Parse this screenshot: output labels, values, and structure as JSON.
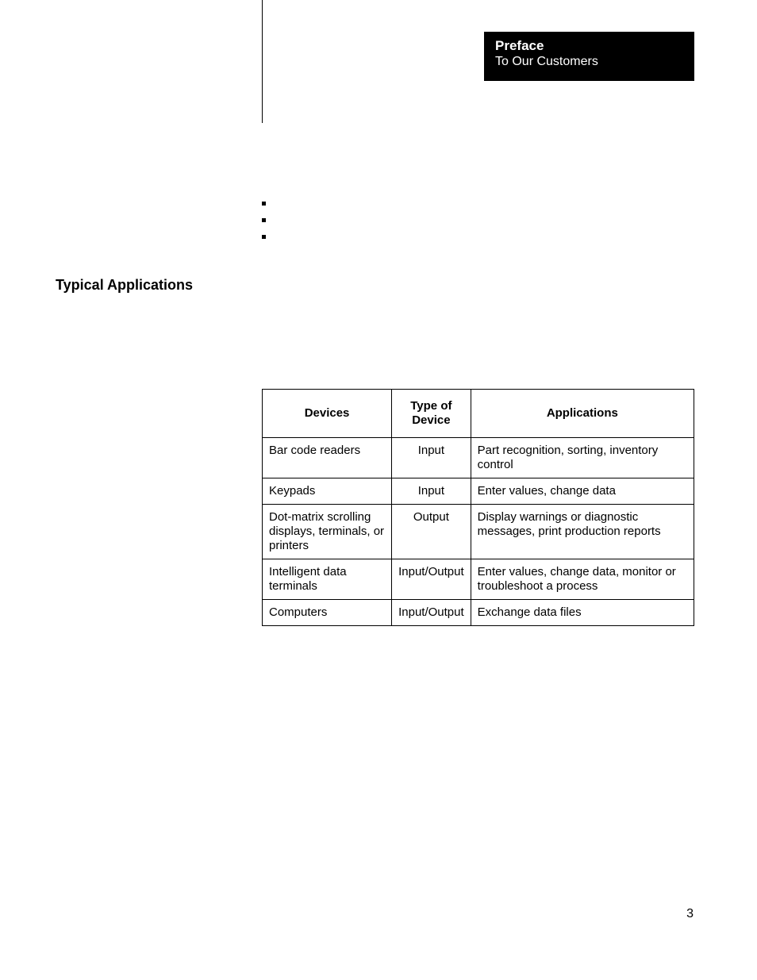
{
  "preface": {
    "title": "Preface",
    "subtitle": "To Our Customers"
  },
  "section_heading": "Typical Applications",
  "table": {
    "columns": [
      {
        "label": "Devices",
        "align": "center"
      },
      {
        "label": "Type of Device",
        "align": "center"
      },
      {
        "label": "Applications",
        "align": "center"
      }
    ],
    "rows": [
      {
        "device": "Bar code readers",
        "type": "Input",
        "app": "Part recognition, sorting, inventory control"
      },
      {
        "device": "Keypads",
        "type": "Input",
        "app": "Enter values, change data"
      },
      {
        "device": "Dot-matrix scrolling displays, terminals, or printers",
        "type": "Output",
        "app": "Display warnings or diagnostic messages, print production reports"
      },
      {
        "device": "Intelligent data terminals",
        "type": "Input/Output",
        "app": "Enter values, change data, monitor or troubleshoot a process"
      },
      {
        "device": "Computers",
        "type": "Input/Output",
        "app": "Exchange data files"
      }
    ]
  },
  "page_number": "3",
  "colors": {
    "background": "#ffffff",
    "text": "#000000",
    "preface_bg": "#000000",
    "preface_text": "#ffffff",
    "table_border": "#000000"
  }
}
